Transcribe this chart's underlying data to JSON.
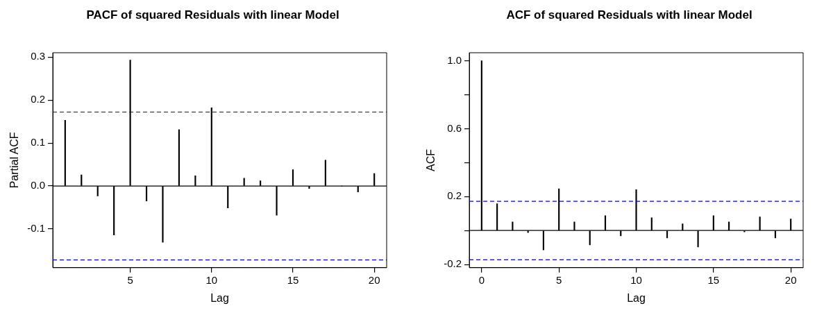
{
  "chart_data": [
    {
      "type": "bar",
      "title": "PACF of squared Residuals with linear Model",
      "xlabel": "Lag",
      "ylabel": "Partial ACF",
      "x": [
        1,
        2,
        3,
        4,
        5,
        6,
        7,
        8,
        9,
        10,
        11,
        12,
        13,
        14,
        15,
        16,
        17,
        18,
        19,
        20
      ],
      "series": [
        {
          "color": "#000000",
          "values": [
            0.153,
            0.026,
            -0.023,
            -0.114,
            0.293,
            -0.035,
            -0.131,
            0.131,
            0.024,
            0.182,
            -0.051,
            0.018,
            0.012,
            -0.068,
            0.038,
            -0.006,
            0.06,
            0,
            -0.014,
            0.029
          ]
        }
      ],
      "xlim": [
        0.24,
        20.76
      ],
      "xticks": [
        5,
        10,
        15,
        20
      ],
      "ylim": [
        -0.19,
        0.31
      ],
      "yticks": [
        -0.1,
        {
          "value": 0,
          "label": "0.0"
        },
        0.1,
        0.2,
        0.3
      ],
      "ref_lines": [
        {
          "axis": "y",
          "value": 0,
          "color": "#000000",
          "line_style": "solid"
        },
        {
          "axis": "y",
          "value": 0.172,
          "color": "#0000ff",
          "line_style": "dashed"
        },
        {
          "axis": "y",
          "value": -0.172,
          "color": "#0000ff",
          "line_style": "dashed"
        }
      ],
      "grid": false,
      "legend": false
    },
    {
      "type": "bar",
      "title": "ACF of squared Residuals with linear Model",
      "xlabel": "Lag",
      "ylabel": "ACF",
      "x": [
        0,
        1,
        2,
        3,
        4,
        5,
        6,
        7,
        8,
        9,
        10,
        11,
        12,
        13,
        14,
        15,
        16,
        17,
        18,
        19,
        20
      ],
      "series": [
        {
          "color": "#000000",
          "values": [
            1.0,
            0.158,
            0.051,
            -0.012,
            -0.114,
            0.246,
            0.051,
            -0.085,
            0.087,
            -0.032,
            0.241,
            0.075,
            -0.044,
            0.039,
            -0.097,
            0.087,
            0.051,
            -0.008,
            0.08,
            -0.044,
            0.068
          ]
        }
      ],
      "xlim": [
        -0.8,
        20.8
      ],
      "xticks": [
        0,
        5,
        10,
        15,
        20
      ],
      "ylim": [
        -0.219,
        1.047
      ],
      "yticks": [
        {
          "value": -0.2,
          "label": "-0.2"
        },
        {
          "value": 0,
          "label": null
        },
        {
          "value": 0.2,
          "label": "0.2"
        },
        {
          "value": 0.4,
          "label": null
        },
        {
          "value": 0.6,
          "label": "0.6"
        },
        {
          "value": 0.8,
          "label": null
        },
        {
          "value": 1.0,
          "label": "1.0"
        }
      ],
      "ref_lines": [
        {
          "axis": "y",
          "value": 0,
          "color": "#000000",
          "line_style": "solid"
        },
        {
          "axis": "y",
          "value": 0.172,
          "color": "#0000ff",
          "line_style": "dashed"
        },
        {
          "axis": "y",
          "value": -0.172,
          "color": "#0000ff",
          "line_style": "dashed"
        }
      ],
      "grid": false,
      "legend": false
    }
  ]
}
